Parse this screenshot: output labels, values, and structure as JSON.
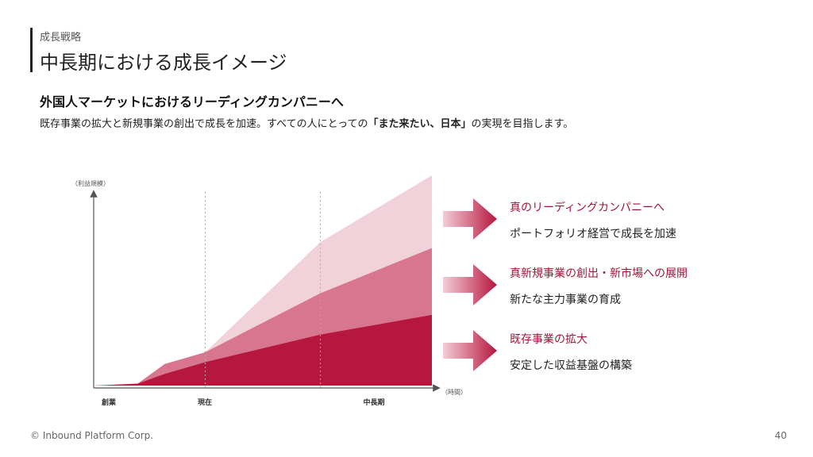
{
  "header": {
    "section": "成長戦略",
    "title": "中長期における成長イメージ"
  },
  "headline": "外国人マーケットにおけるリーディングカンパニーへ",
  "description": {
    "before": "既存事業の拡大と新規事業の創出で成長を加速。すべての人にとっての",
    "emphasis": "「また来たい、日本」",
    "after": "の実現を目指します。"
  },
  "colors": {
    "accent": "#a3143a",
    "layer_base": "#b5173f",
    "layer_middle": "#d7768e",
    "layer_top": "#f1d2da",
    "arrow_start": "#f4ccd6",
    "arrow_end": "#b5173f"
  },
  "chart_data": {
    "type": "area",
    "stacked": true,
    "ylabel": "（利益規模）",
    "xlabel": "（時間）",
    "categories": [
      "創業",
      "現在",
      "中長期"
    ],
    "x": [
      0,
      0.13,
      0.21,
      0.33,
      0.67,
      1.0
    ],
    "series": [
      {
        "name": "既存事業の拡大",
        "values": [
          0.0,
          0.01,
          0.06,
          0.12,
          0.26,
          0.36
        ]
      },
      {
        "name": "真新規事業の創出・新市場への展開",
        "values": [
          0.0,
          0.0,
          0.05,
          0.05,
          0.21,
          0.34
        ]
      },
      {
        "name": "真のリーディングカンパニーへ",
        "values": [
          0.0,
          0.0,
          0.0,
          0.0,
          0.26,
          0.37
        ]
      }
    ],
    "ylim": [
      0,
      1.07
    ],
    "grid": false,
    "vertical_guides_at": [
      "現在",
      "中長期"
    ],
    "legend": "right"
  },
  "tiers": [
    {
      "title": "真のリーディングカンパニーへ",
      "subtitle": "ポートフォリオ経営で成長を加速"
    },
    {
      "title": "真新規事業の創出・新市場への展開",
      "subtitle": "新たな主力事業の育成"
    },
    {
      "title": "既存事業の拡大",
      "subtitle": "安定した収益基盤の構築"
    }
  ],
  "footer": {
    "copyright": "© Inbound Platform Corp.",
    "page_number": "40"
  }
}
